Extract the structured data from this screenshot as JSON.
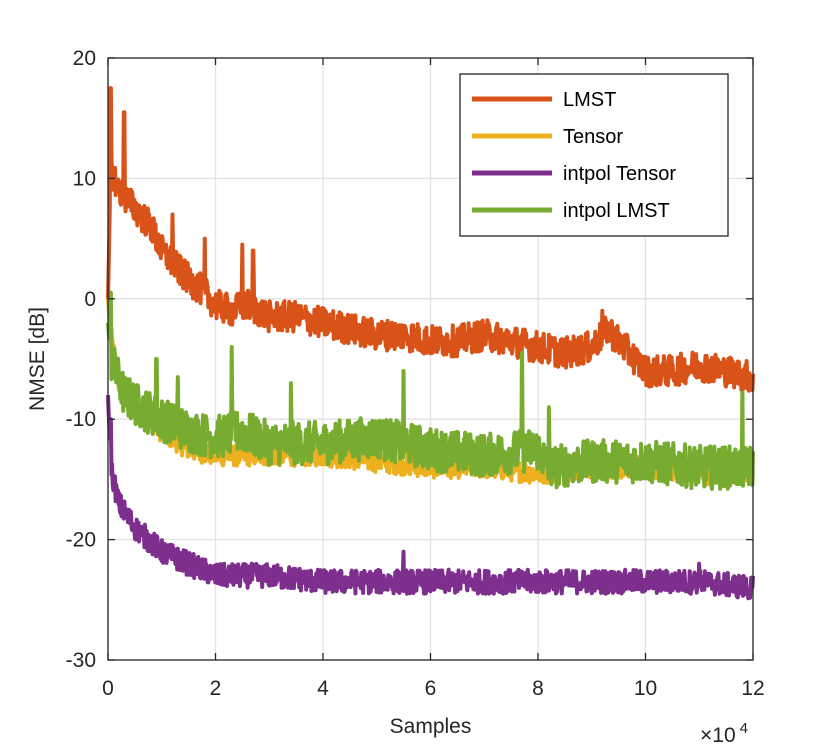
{
  "chart_data": {
    "type": "line",
    "title": "",
    "xlabel": "Samples",
    "ylabel": "NMSE [dB]",
    "x_multiplier_base": "×10",
    "x_multiplier_exp": "4",
    "xlim": [
      0,
      12
    ],
    "ylim": [
      -30,
      20
    ],
    "xticks": [
      0,
      2,
      4,
      6,
      8,
      10,
      12
    ],
    "yticks": [
      -30,
      -20,
      -10,
      0,
      10,
      20
    ],
    "xtick_labels": [
      "0",
      "2",
      "4",
      "6",
      "8",
      "10",
      "12"
    ],
    "ytick_labels": [
      "-30",
      "-20",
      "-10",
      "0",
      "10",
      "20"
    ],
    "grid": true,
    "legend_position": "top-right",
    "series": [
      {
        "name": "LMST",
        "color": "#D95319",
        "noise": 1.3,
        "spikes": [
          [
            0.05,
            17.5
          ],
          [
            0.3,
            15.5
          ],
          [
            1.2,
            7
          ],
          [
            1.8,
            5
          ],
          [
            2.5,
            4.5
          ],
          [
            2.7,
            4
          ],
          [
            9.2,
            -1
          ]
        ],
        "x": [
          0,
          0.05,
          0.2,
          0.4,
          0.6,
          0.8,
          1.0,
          1.4,
          1.8,
          2.0,
          2.3,
          2.6,
          3.0,
          3.5,
          4.0,
          4.5,
          5.0,
          5.5,
          6.0,
          6.5,
          7.0,
          7.5,
          8.0,
          8.5,
          9.0,
          9.3,
          9.6,
          10.0,
          10.5,
          11.0,
          11.5,
          12.0
        ],
        "y": [
          0,
          11,
          9,
          8,
          7,
          6,
          4,
          2,
          0.5,
          -0.5,
          -1,
          -0.5,
          -1.5,
          -1.5,
          -2,
          -2.5,
          -3,
          -3,
          -3.5,
          -3.5,
          -3,
          -3.5,
          -4,
          -4.5,
          -4,
          -2.5,
          -4,
          -6,
          -6,
          -5.5,
          -6,
          -6.5
        ]
      },
      {
        "name": "Tensor",
        "color": "#EDB120",
        "noise": 0.9,
        "spikes": [],
        "x": [
          0,
          0.05,
          0.2,
          0.5,
          1.0,
          1.5,
          2.0,
          3.0,
          4.0,
          5.0,
          6.0,
          7.0,
          8.0,
          9.0,
          10.0,
          11.0,
          12.0
        ],
        "y": [
          0,
          -3,
          -7,
          -9,
          -11,
          -12.5,
          -13,
          -13,
          -13,
          -13.5,
          -14,
          -14,
          -14.5,
          -14,
          -14,
          -14.5,
          -14.5
        ]
      },
      {
        "name": "intpol Tensor",
        "color": "#7E2F8E",
        "noise": 1.0,
        "spikes": [
          [
            0.05,
            -10
          ],
          [
            5.5,
            -21
          ],
          [
            11.0,
            -22
          ]
        ],
        "x": [
          0,
          0.05,
          0.2,
          0.5,
          1.0,
          1.5,
          2.0,
          3.0,
          4.0,
          5.0,
          6.0,
          7.0,
          8.0,
          9.0,
          10.0,
          11.0,
          12.0
        ],
        "y": [
          -8,
          -14,
          -17,
          -19,
          -21,
          -22,
          -23,
          -23,
          -23.5,
          -23.5,
          -23.5,
          -23.5,
          -23.5,
          -23.5,
          -23.5,
          -23.5,
          -24
        ]
      },
      {
        "name": "intpol LMST",
        "color": "#77AC30",
        "noise": 1.8,
        "spikes": [
          [
            0.05,
            0.5
          ],
          [
            0.9,
            -5
          ],
          [
            1.3,
            -6.5
          ],
          [
            2.3,
            -4
          ],
          [
            3.4,
            -7
          ],
          [
            5.5,
            -6
          ],
          [
            7.7,
            -3
          ],
          [
            8.2,
            -9
          ],
          [
            11.8,
            -7
          ]
        ],
        "x": [
          0,
          0.05,
          0.3,
          0.6,
          1.0,
          1.5,
          2.0,
          2.5,
          3.0,
          4.0,
          5.0,
          6.0,
          7.0,
          8.0,
          8.2,
          9.0,
          10.0,
          11.0,
          12.0
        ],
        "y": [
          -2,
          -5,
          -8,
          -9,
          -10,
          -11,
          -11.5,
          -11,
          -12,
          -12,
          -11.5,
          -12.5,
          -13,
          -12.5,
          -14,
          -13.5,
          -13.5,
          -14,
          -14
        ]
      }
    ]
  }
}
